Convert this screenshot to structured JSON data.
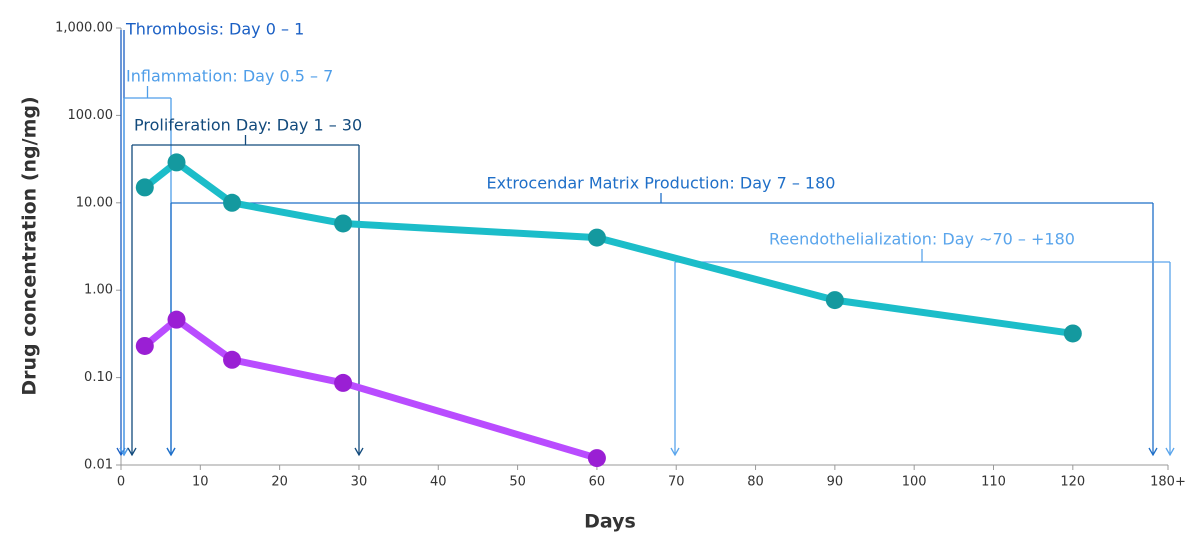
{
  "chart_data": {
    "type": "line",
    "x_label": "Days",
    "y_label": "Drug concentration (ng/mg)",
    "log_y": true,
    "xlim": [
      0,
      132
    ],
    "ylim": [
      0.01,
      1000
    ],
    "xticks": [
      0,
      10,
      20,
      30,
      40,
      50,
      60,
      70,
      80,
      90,
      100,
      110,
      120,
      {
        "value": 132,
        "label": "180+"
      }
    ],
    "yticks": [
      {
        "value": 0.01,
        "label": "0.01"
      },
      {
        "value": 0.1,
        "label": "0.10"
      },
      {
        "value": 1,
        "label": "1.00"
      },
      {
        "value": 10,
        "label": "10.00"
      },
      {
        "value": 100,
        "label": "100.00"
      },
      {
        "value": 1000,
        "label": "1,000.00"
      }
    ],
    "series": [
      {
        "color": "#1cbdc9",
        "marker_color": "#14999f",
        "x": [
          3,
          7,
          14,
          28,
          60,
          90,
          120
        ],
        "values": [
          15,
          29,
          10,
          5.8,
          4,
          0.77,
          0.32
        ]
      },
      {
        "color": "#b94cff",
        "marker_color": "#9a1fd4",
        "x": [
          3,
          7,
          14,
          28,
          60
        ],
        "values": [
          0.23,
          0.46,
          0.16,
          0.087,
          0.012
        ]
      }
    ],
    "annotations": [
      {
        "text": "Thrombosis: Day 0 – 1",
        "color": "#1a5fc4"
      },
      {
        "text": "Inflammation: Day 0.5 – 7",
        "color": "#4f9ee9"
      },
      {
        "text": "Proliferation Day: Day 1 – 30",
        "color": "#124a7c"
      },
      {
        "text": "Extrocendar Matrix Production: Day 7 – 180",
        "color": "#1f6fc8"
      },
      {
        "text": "Reendothelialization: Day ~70 – +180",
        "color": "#5aa5ec"
      }
    ]
  }
}
